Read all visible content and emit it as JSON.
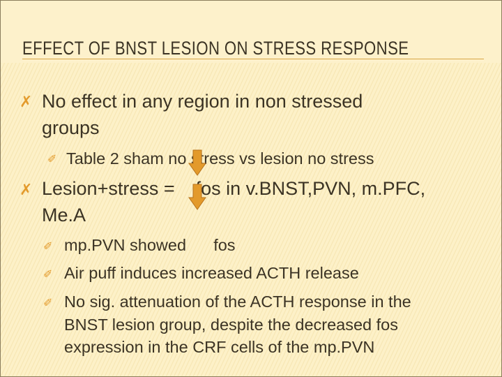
{
  "title": "EFFECT OF BNST LESION ON STRESS RESPONSE",
  "bullets": [
    {
      "lines": [
        "No effect in any region in non stressed",
        "groups"
      ]
    },
    {
      "text": "Table 2 sham no stress vs lesion no stress"
    },
    {
      "lines": [
        "Lesion+stress =    fos in v.BNST,PVN, m.PFC,",
        "Me.A"
      ]
    },
    {
      "text": "mp.PVN showed      fos"
    },
    {
      "text": "Air puff induces increased ACTH release"
    },
    {
      "lines": [
        "No sig. attenuation of the ACTH response in the",
        "BNST lesion group, despite the decreased fos",
        "expression in the CRF cells of the mp.PVN"
      ]
    }
  ],
  "colors": {
    "accent": "#e39a2b",
    "text": "#3b3324",
    "background": "#fdf1c8"
  },
  "icons": {
    "main_bullet": "quill-x-icon",
    "sub_bullet": "pen-icon",
    "arrow": "down-arrow-icon"
  }
}
